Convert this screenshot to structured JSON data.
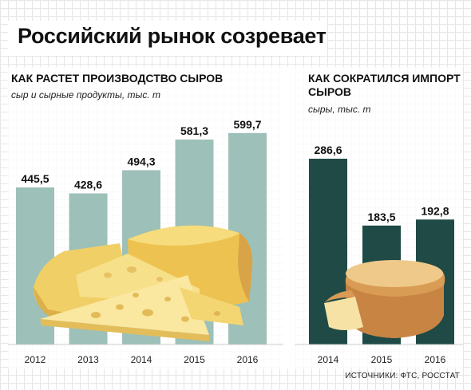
{
  "headline": "Российский рынок созревает",
  "production": {
    "title": "КАК РАСТЕТ ПРОИЗВОДСТВО СЫРОВ",
    "subtitle": "сыр и сырные продукты, тыс. т"
  },
  "imports": {
    "title_line1": "КАК СОКРАТИЛСЯ ИМПОРТ",
    "title_line2": "СЫРОВ",
    "subtitle": "сыры, тыс. т"
  },
  "sources": "ИСТОЧНИКИ: ФТС, РОССТАТ",
  "colors": {
    "production_bar": "#9dc0b8",
    "import_bar": "#1f4a45",
    "cheese_light": "#f4dc7a",
    "cheese_dark": "#e7b94a",
    "rind": "#d9a35c"
  },
  "chart_data": [
    {
      "type": "bar",
      "title": "КАК РАСТЕТ ПРОИЗВОДСТВО СЫРОВ",
      "subtitle": "сыр и сырные продукты, тыс. т",
      "categories": [
        "2012",
        "2013",
        "2014",
        "2015",
        "2016"
      ],
      "values": [
        445.5,
        428.6,
        494.3,
        581.3,
        599.7
      ],
      "labels": [
        "445,5",
        "428,6",
        "494,3",
        "581,3",
        "599,7"
      ],
      "ylim": [
        0,
        690
      ],
      "grid": false
    },
    {
      "type": "bar",
      "title": "КАК СОКРАТИЛСЯ ИМПОРТ СЫРОВ",
      "subtitle": "сыры, тыс. т",
      "categories": [
        "2014",
        "2015",
        "2016"
      ],
      "values": [
        286.6,
        183.5,
        192.8
      ],
      "labels": [
        "286,6",
        "183,5",
        "192,8"
      ],
      "ylim": [
        0,
        372
      ],
      "grid": false
    }
  ]
}
